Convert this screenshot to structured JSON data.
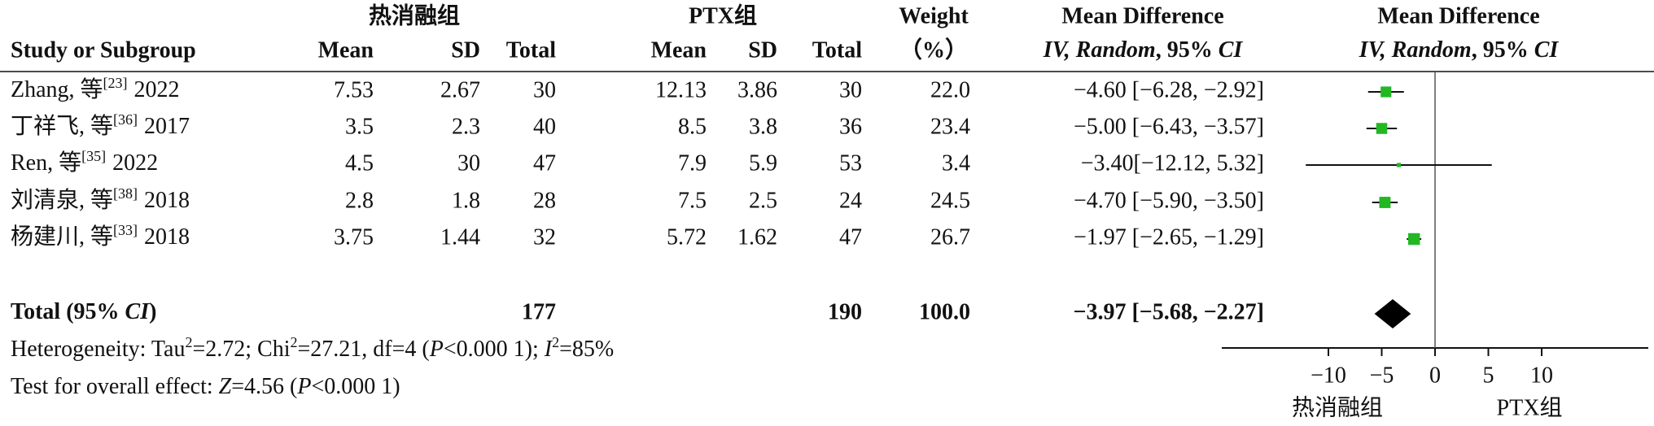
{
  "chart_data": {
    "type": "forest",
    "group_headers": [
      "热消融组",
      "PTX组"
    ],
    "column_headers": [
      "Study or Subgroup",
      "Mean",
      "SD",
      "Total",
      "Mean",
      "SD",
      "Total"
    ],
    "weight_header": [
      "Weight",
      "（%）"
    ],
    "md_header": [
      "Mean Difference",
      [
        "IV",
        ", ",
        "Random",
        ", 95% ",
        "CI"
      ]
    ],
    "plot_header": [
      "Mean Difference",
      [
        "IV",
        ", ",
        "Random",
        ", 95% ",
        "CI"
      ]
    ],
    "studies": [
      {
        "name": "Zhang, 等",
        "ref": "[23]",
        "year": "2022",
        "exp_mean": 7.53,
        "exp_sd": 2.67,
        "exp_total": 30,
        "ctl_mean": 12.13,
        "ctl_sd": 3.86,
        "ctl_total": 30,
        "weight": 22,
        "weight_label": "22.0",
        "md": -4.6,
        "ci_low": -6.28,
        "ci_high": -2.92,
        "label": "−4.60 [−6.28, −2.92]"
      },
      {
        "name": "丁祥飞, 等",
        "ref": "[36]",
        "year": "2017",
        "exp_mean": 3.5,
        "exp_sd": 2.3,
        "exp_total": 40,
        "ctl_mean": 8.5,
        "ctl_sd": 3.8,
        "ctl_total": 36,
        "weight": 23.4,
        "weight_label": "23.4",
        "md": -5,
        "ci_low": -6.43,
        "ci_high": -3.57,
        "label": "−5.00 [−6.43, −3.57]"
      },
      {
        "name": "Ren, 等",
        "ref": "[35]",
        "year": "2022",
        "exp_mean": 4.5,
        "exp_sd": 30,
        "exp_total": 47,
        "ctl_mean": 7.9,
        "ctl_sd": 5.9,
        "ctl_total": 53,
        "weight": 3.4,
        "weight_label": "3.4",
        "md": -3.4,
        "ci_low": -12.12,
        "ci_high": 5.32,
        "label": "−3.40[−12.12, 5.32]"
      },
      {
        "name": "刘清泉, 等",
        "ref": "[38]",
        "year": "2018",
        "exp_mean": 2.8,
        "exp_sd": 1.8,
        "exp_total": 28,
        "ctl_mean": 7.5,
        "ctl_sd": 2.5,
        "ctl_total": 24,
        "weight": 24.5,
        "weight_label": "24.5",
        "md": -4.7,
        "ci_low": -5.9,
        "ci_high": -3.5,
        "label": "−4.70 [−5.90, −3.50]"
      },
      {
        "name": "杨建川, 等",
        "ref": "[33]",
        "year": "2018",
        "exp_mean": 3.75,
        "exp_sd": 1.44,
        "exp_total": 32,
        "ctl_mean": 5.72,
        "ctl_sd": 1.62,
        "ctl_total": 47,
        "weight": 26.7,
        "weight_label": "26.7",
        "md": -1.97,
        "ci_low": -2.65,
        "ci_high": -1.29,
        "label": "−1.97 [−2.65, −1.29]"
      }
    ],
    "total": {
      "name": [
        "Total (95% ",
        "CI",
        ")"
      ],
      "exp_total": 177,
      "ctl_total": 190,
      "weight": 100,
      "weight_label": "100.0",
      "md": -3.97,
      "ci_low": -5.68,
      "ci_high": -2.27,
      "label": "−3.97 [−5.68, −2.27]"
    },
    "heterogeneity": [
      "Heterogeneity: Tau",
      "2",
      "=2.72; Chi",
      "2",
      "=27.21, df=4 (",
      "P",
      "<0.000 1); ",
      "I",
      "2",
      "=85%"
    ],
    "overall_effect": [
      "Test for overall effect: ",
      "Z",
      "=4.56 (",
      "P",
      "<0.000 1)"
    ],
    "xlim": [
      -20,
      20
    ],
    "xticks": [
      {
        "value": -10,
        "label": "−10"
      },
      {
        "value": -5,
        "label": "−5"
      },
      0,
      5,
      10
    ],
    "axis_labels": [
      "热消融组",
      "PTX组"
    ],
    "color": "#22b822",
    "diamond_color": "#000000"
  }
}
